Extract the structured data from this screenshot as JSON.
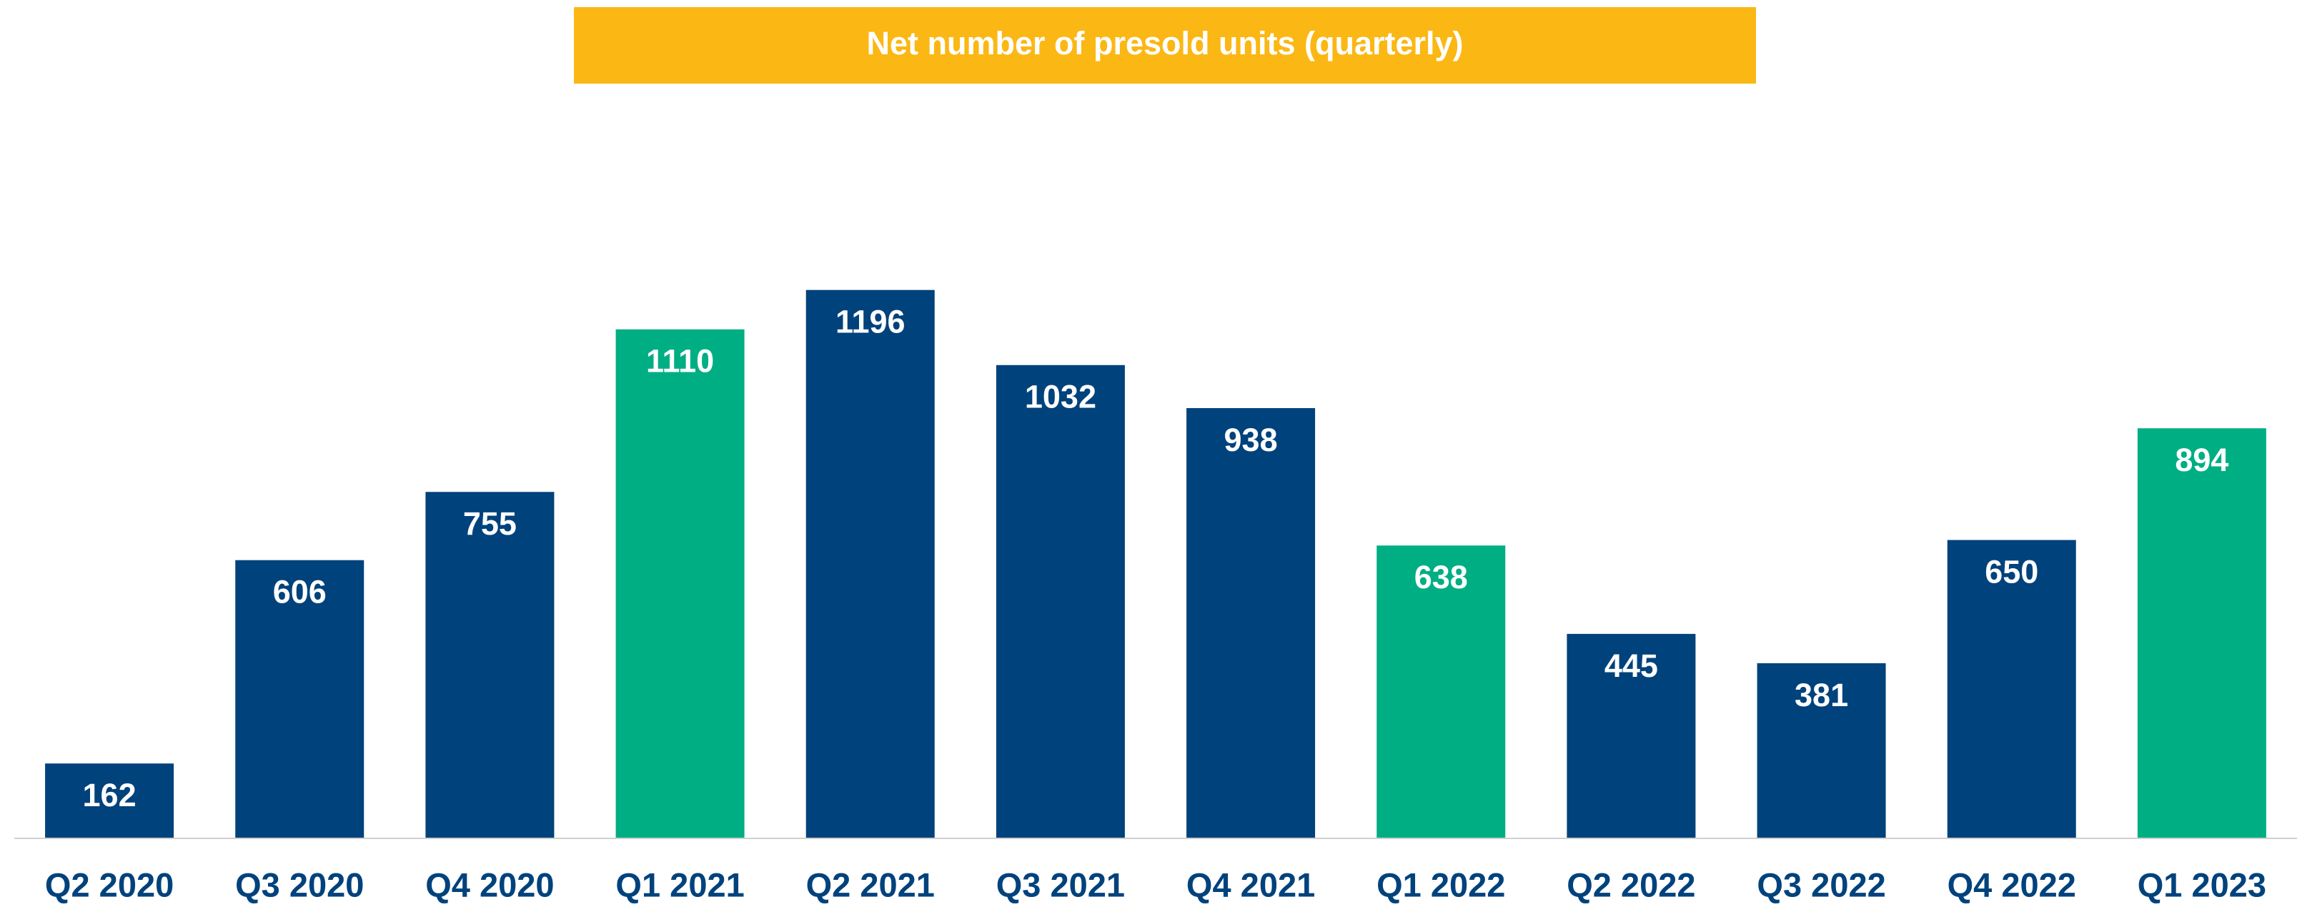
{
  "chart_data": {
    "type": "bar",
    "title": "Net number of presold units (quarterly)",
    "categories": [
      "Q2 2020",
      "Q3 2020",
      "Q4 2020",
      "Q1 2021",
      "Q2 2021",
      "Q3 2021",
      "Q4 2021",
      "Q1 2022",
      "Q2 2022",
      "Q3 2022",
      "Q4 2022",
      "Q1 2023"
    ],
    "values": [
      162,
      606,
      755,
      1110,
      1196,
      1032,
      938,
      638,
      445,
      381,
      650,
      894
    ],
    "colors": [
      "#00427c",
      "#00427c",
      "#00427c",
      "#00ae84",
      "#00427c",
      "#00427c",
      "#00427c",
      "#00ae84",
      "#00427c",
      "#00427c",
      "#00427c",
      "#00ae84"
    ],
    "ylim": [
      0,
      1400
    ]
  }
}
